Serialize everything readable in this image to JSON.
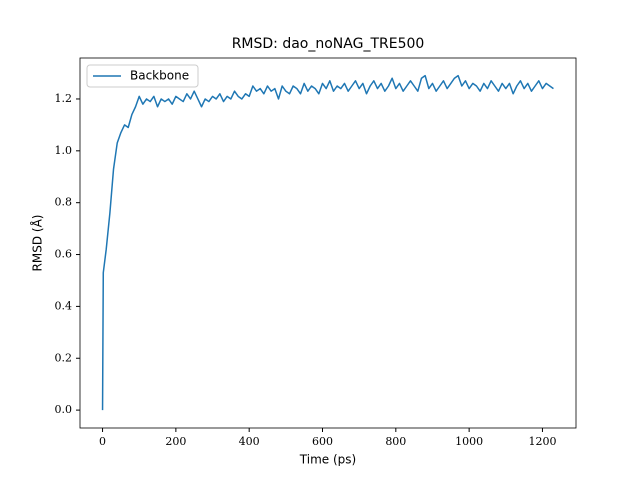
{
  "chart_data": {
    "type": "line",
    "title": "RMSD: dao_noNAG_TRE500",
    "xlabel": "Time (ps)",
    "ylabel": "RMSD (Å)",
    "x": [
      0,
      2,
      10,
      20,
      30,
      40,
      50,
      60,
      70,
      80,
      90,
      100,
      110,
      120,
      130,
      140,
      150,
      160,
      170,
      180,
      190,
      200,
      210,
      220,
      230,
      240,
      250,
      260,
      270,
      280,
      290,
      300,
      310,
      320,
      330,
      340,
      350,
      360,
      370,
      380,
      390,
      400,
      410,
      420,
      430,
      440,
      450,
      460,
      470,
      480,
      490,
      500,
      510,
      520,
      530,
      540,
      550,
      560,
      570,
      580,
      590,
      600,
      610,
      620,
      630,
      640,
      650,
      660,
      670,
      680,
      690,
      700,
      710,
      720,
      730,
      740,
      750,
      760,
      770,
      780,
      790,
      800,
      810,
      820,
      830,
      840,
      850,
      860,
      870,
      880,
      890,
      900,
      910,
      920,
      930,
      940,
      950,
      960,
      970,
      980,
      990,
      1000,
      1010,
      1020,
      1030,
      1040,
      1050,
      1060,
      1070,
      1080,
      1090,
      1100,
      1110,
      1120,
      1130,
      1140,
      1150,
      1160,
      1170,
      1180,
      1190,
      1200,
      1210,
      1220,
      1230
    ],
    "series": [
      {
        "name": "Backbone",
        "color": "#1f77b4",
        "values": [
          0,
          0.53,
          0.62,
          0.76,
          0.93,
          1.03,
          1.07,
          1.1,
          1.09,
          1.14,
          1.17,
          1.21,
          1.18,
          1.2,
          1.19,
          1.21,
          1.17,
          1.2,
          1.19,
          1.2,
          1.18,
          1.21,
          1.2,
          1.19,
          1.22,
          1.2,
          1.23,
          1.2,
          1.17,
          1.2,
          1.19,
          1.21,
          1.2,
          1.22,
          1.19,
          1.21,
          1.2,
          1.23,
          1.21,
          1.2,
          1.22,
          1.21,
          1.25,
          1.23,
          1.24,
          1.22,
          1.25,
          1.23,
          1.24,
          1.2,
          1.25,
          1.23,
          1.22,
          1.25,
          1.24,
          1.22,
          1.26,
          1.23,
          1.25,
          1.24,
          1.22,
          1.26,
          1.24,
          1.27,
          1.23,
          1.25,
          1.24,
          1.26,
          1.23,
          1.25,
          1.27,
          1.24,
          1.26,
          1.22,
          1.25,
          1.27,
          1.24,
          1.26,
          1.23,
          1.25,
          1.28,
          1.24,
          1.26,
          1.23,
          1.25,
          1.27,
          1.25,
          1.23,
          1.28,
          1.29,
          1.24,
          1.26,
          1.23,
          1.25,
          1.27,
          1.24,
          1.26,
          1.28,
          1.29,
          1.25,
          1.27,
          1.24,
          1.26,
          1.25,
          1.23,
          1.26,
          1.24,
          1.27,
          1.25,
          1.23,
          1.26,
          1.24,
          1.26,
          1.22,
          1.25,
          1.27,
          1.24,
          1.26,
          1.23,
          1.25,
          1.27,
          1.24,
          1.26,
          1.25,
          1.24
        ]
      }
    ],
    "xlim": [
      -61.5,
      1291.5
    ],
    "ylim": [
      -0.069,
      1.358
    ],
    "xticks": [
      0,
      200,
      400,
      600,
      800,
      1000,
      1200
    ],
    "yticks": [
      {
        "value": 0,
        "label": "0.0"
      },
      0.2,
      0.4,
      0.6,
      0.8,
      {
        "value": 1,
        "label": "1.0"
      },
      1.2
    ],
    "legend": "upper left"
  }
}
